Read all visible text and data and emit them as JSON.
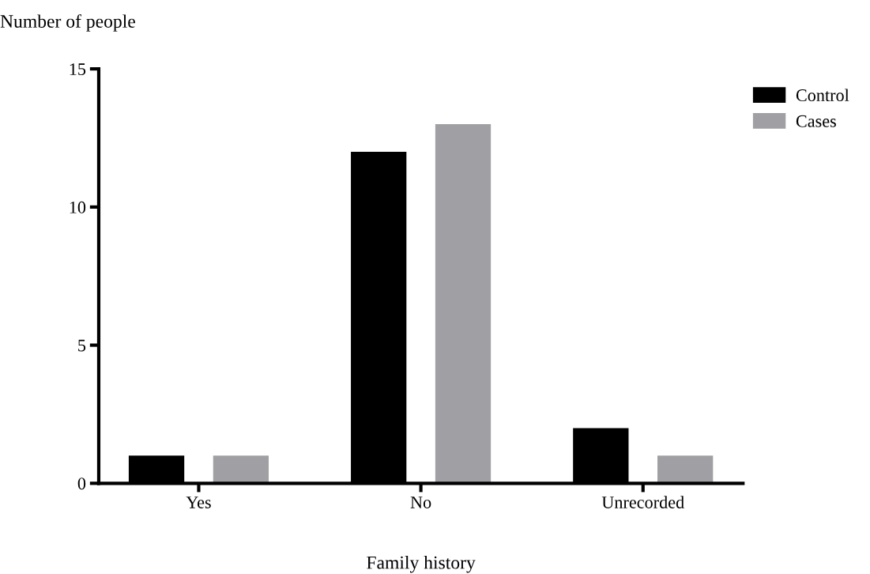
{
  "chart_data": {
    "type": "bar",
    "xlabel": "Family history",
    "ylabel": "Number of people",
    "categories": [
      "Yes",
      "No",
      "Unrecorded"
    ],
    "series": [
      {
        "name": "Control",
        "color": "#000000",
        "values": [
          1,
          12,
          2
        ]
      },
      {
        "name": "Cases",
        "color": "#a0a0a4",
        "values": [
          1,
          13,
          1
        ]
      }
    ],
    "ylim": [
      0,
      15
    ],
    "yticks": [
      0,
      5,
      10,
      15
    ],
    "grid": false,
    "legend": "top right"
  }
}
